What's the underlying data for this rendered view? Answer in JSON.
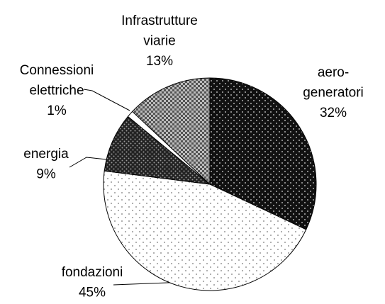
{
  "chart_data": {
    "type": "pie",
    "categories": [
      "aero-generatori",
      "fondazioni",
      "energia",
      "Connessioni elettriche",
      "Infrastrutture viarie"
    ],
    "values": [
      32,
      45,
      9,
      1,
      13
    ],
    "value_labels": [
      "32%",
      "45%",
      "9%",
      "1%",
      "13%"
    ]
  }
}
